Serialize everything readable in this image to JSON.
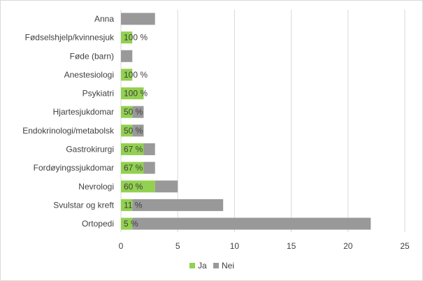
{
  "chart_data": {
    "type": "bar",
    "orientation": "horizontal",
    "stacked": true,
    "categories": [
      "Anna",
      "Fødselshjelp/kvinnesjuk",
      "Føde (barn)",
      "Anestesiologi",
      "Psykiatri",
      "Hjartesjukdomar",
      "Endokrinologi/metabolsk",
      "Gastrokirurgi",
      "Fordøyingssjukdomar",
      "Nevrologi",
      "Svulstar og kreft",
      "Ortopedi"
    ],
    "series": [
      {
        "name": "Ja",
        "color": "#92d050",
        "values": [
          0,
          1,
          0,
          1,
          2,
          1,
          1,
          2,
          2,
          3,
          1,
          1
        ]
      },
      {
        "name": "Nei",
        "color": "#999999",
        "values": [
          3,
          0,
          1,
          0,
          0,
          1,
          1,
          1,
          1,
          2,
          8,
          21
        ]
      }
    ],
    "data_labels": [
      "",
      "100 %",
      "",
      "100 %",
      "100 %",
      "50 %",
      "50 %",
      "67 %",
      "67 %",
      "60 %",
      "11 %",
      "5 %"
    ],
    "xlim": [
      0,
      25
    ],
    "xticks": [
      "0",
      "5",
      "10",
      "15",
      "20",
      "25"
    ],
    "grid": "vertical",
    "legend": "bottom"
  }
}
